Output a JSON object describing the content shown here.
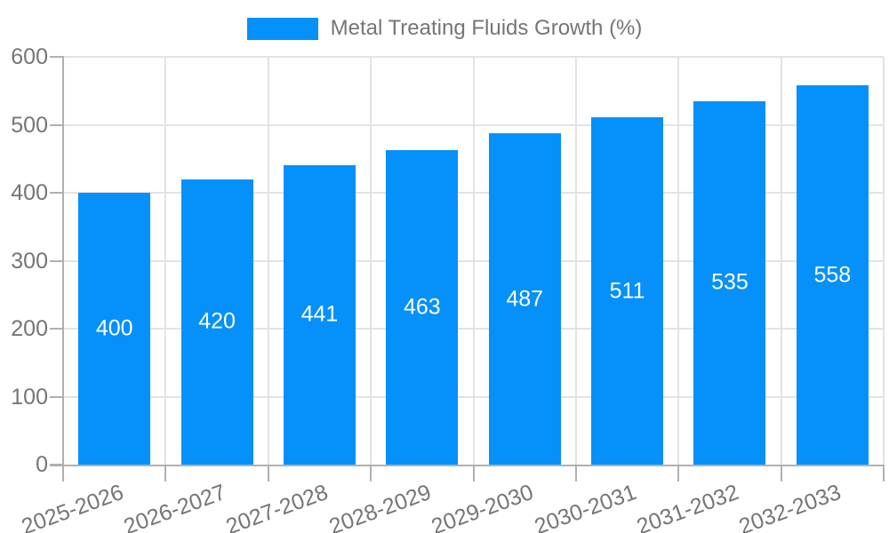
{
  "legend": {
    "label": "Metal Treating Fluids Growth (%)"
  },
  "chart_data": {
    "type": "bar",
    "title": "Metal Treating Fluids Growth (%)",
    "categories": [
      "2025-2026",
      "2026-2027",
      "2027-2028",
      "2028-2029",
      "2029-2030",
      "2030-2031",
      "2031-2032",
      "2032-2033"
    ],
    "values": [
      400,
      420,
      441,
      463,
      487,
      511,
      535,
      558
    ],
    "xlabel": "",
    "ylabel": "",
    "ylim": [
      0,
      600
    ],
    "yticks": [
      0,
      100,
      200,
      300,
      400,
      500,
      600
    ],
    "grid": true,
    "legend_position": "top",
    "bar_color": "#0590fa",
    "value_label_color": "#ffffff"
  },
  "colors": {
    "axis": "#b0b0b0",
    "gridline": "#e3e3e3",
    "tick_text": "#757575",
    "background": "#ffffff"
  }
}
